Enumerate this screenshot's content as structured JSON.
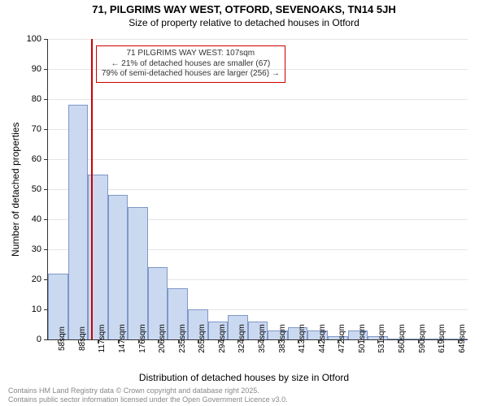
{
  "header": {
    "title_line1": "71, PILGRIMS WAY WEST, OTFORD, SEVENOAKS, TN14 5JH",
    "title_line2": "Size of property relative to detached houses in Otford"
  },
  "chart": {
    "type": "histogram",
    "background_color": "#ffffff",
    "grid_color": "#e5e5e5",
    "axis_color": "#333333",
    "bar_fill": "#cbd9f0",
    "bar_stroke": "#7f98c8",
    "ylim": [
      0,
      100
    ],
    "ytick_step": 10,
    "yticks": [
      0,
      10,
      20,
      30,
      40,
      50,
      60,
      70,
      80,
      90,
      100
    ],
    "ylabel": "Number of detached properties",
    "xlabel": "Distribution of detached houses by size in Otford",
    "x_categories": [
      "58sqm",
      "88sqm",
      "117sqm",
      "147sqm",
      "176sqm",
      "206sqm",
      "235sqm",
      "265sqm",
      "294sqm",
      "324sqm",
      "354sqm",
      "383sqm",
      "413sqm",
      "442sqm",
      "472sqm",
      "501sqm",
      "531sqm",
      "560sqm",
      "590sqm",
      "619sqm",
      "649sqm"
    ],
    "values": [
      22,
      78,
      55,
      48,
      44,
      24,
      17,
      10,
      6,
      8,
      6,
      3,
      4,
      3,
      1,
      3,
      1,
      0,
      0,
      0,
      0
    ],
    "bar_width": 1.0,
    "label_fontsize": 11
  },
  "marker": {
    "position_index": 1.65,
    "color": "#cc0000"
  },
  "annotation": {
    "border_color": "#cc0000",
    "text_color": "#333333",
    "line1": "71 PILGRIMS WAY WEST: 107sqm",
    "line2": "← 21% of detached houses are smaller (67)",
    "line3": "79% of semi-detached houses are larger (256) →"
  },
  "footer": {
    "line1": "Contains HM Land Registry data © Crown copyright and database right 2025.",
    "line2": "Contains public sector information licensed under the Open Government Licence v3.0."
  }
}
